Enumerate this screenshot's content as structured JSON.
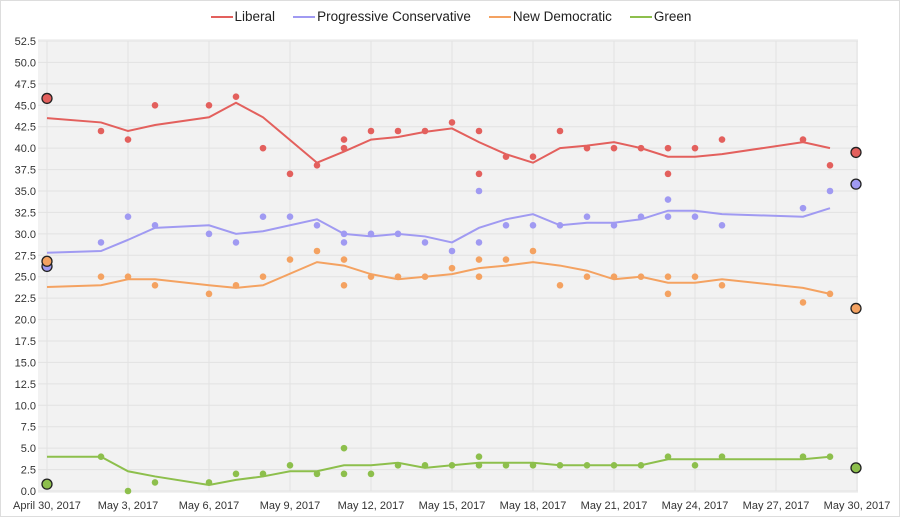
{
  "chart_data": {
    "type": "line",
    "title": "",
    "xlabel": "",
    "ylabel": "",
    "x_start": "2017-04-30",
    "x_end": "2017-05-30",
    "xticks": [
      "April 30, 2017",
      "May 3, 2017",
      "May 6, 2017",
      "May 9, 2017",
      "May 12, 2017",
      "May 15, 2017",
      "May 18, 2017",
      "May 21, 2017",
      "May 24, 2017",
      "May 27, 2017",
      "May 30, 2017"
    ],
    "ylim": [
      0,
      52.5
    ],
    "yticks": [
      "0.0",
      "2.5",
      "5.0",
      "7.5",
      "10.0",
      "12.5",
      "15.0",
      "17.5",
      "20.0",
      "22.5",
      "25.0",
      "27.5",
      "30.0",
      "32.5",
      "35.0",
      "37.5",
      "40.0",
      "42.5",
      "45.0",
      "47.5",
      "50.0",
      "52.5"
    ],
    "grid": true,
    "legend_position": "top",
    "series": [
      {
        "name": "Liberal",
        "color": "#e3605d",
        "trend": [
          [
            "04-30",
            43.5
          ],
          [
            "05-02",
            43
          ],
          [
            "05-03",
            42
          ],
          [
            "05-04",
            42.7
          ],
          [
            "05-06",
            43.6
          ],
          [
            "05-07",
            45.3
          ],
          [
            "05-08",
            43.6
          ],
          [
            "05-10",
            38.3
          ],
          [
            "05-11",
            39.6
          ],
          [
            "05-12",
            41
          ],
          [
            "05-13",
            41.3
          ],
          [
            "05-14",
            41.9
          ],
          [
            "05-15",
            42.3
          ],
          [
            "05-16",
            40.7
          ],
          [
            "05-17",
            39.3
          ],
          [
            "05-18",
            38.3
          ],
          [
            "05-19",
            40
          ],
          [
            "05-20",
            40.3
          ],
          [
            "05-21",
            40.7
          ],
          [
            "05-22",
            40
          ],
          [
            "05-23",
            39
          ],
          [
            "05-24",
            39
          ],
          [
            "05-25",
            39.3
          ],
          [
            "05-28",
            40.7
          ],
          [
            "05-29",
            40
          ]
        ],
        "polls": [
          [
            "05-02",
            42
          ],
          [
            "05-03",
            41
          ],
          [
            "05-04",
            45
          ],
          [
            "05-06",
            45
          ],
          [
            "05-07",
            46
          ],
          [
            "05-08",
            40
          ],
          [
            "05-09",
            37
          ],
          [
            "05-10",
            38
          ],
          [
            "05-11",
            41
          ],
          [
            "05-11",
            40
          ],
          [
            "05-12",
            42
          ],
          [
            "05-13",
            42
          ],
          [
            "05-14",
            42
          ],
          [
            "05-15",
            43
          ],
          [
            "05-16",
            42
          ],
          [
            "05-16",
            37
          ],
          [
            "05-17",
            39
          ],
          [
            "05-18",
            39
          ],
          [
            "05-19",
            42
          ],
          [
            "05-20",
            40
          ],
          [
            "05-21",
            40
          ],
          [
            "05-22",
            40
          ],
          [
            "05-23",
            40
          ],
          [
            "05-23",
            37
          ],
          [
            "05-24",
            40
          ],
          [
            "05-25",
            41
          ],
          [
            "05-28",
            41
          ],
          [
            "05-29",
            38
          ]
        ],
        "results": [
          [
            "04-30",
            45.8
          ],
          [
            "05-30",
            39.5
          ]
        ]
      },
      {
        "name": "Progressive Conservative",
        "color": "#a09af2",
        "trend": [
          [
            "04-30",
            27.8
          ],
          [
            "05-02",
            28
          ],
          [
            "05-03",
            29.3
          ],
          [
            "05-04",
            30.7
          ],
          [
            "05-06",
            31
          ],
          [
            "05-07",
            30
          ],
          [
            "05-08",
            30.3
          ],
          [
            "05-10",
            31.7
          ],
          [
            "05-11",
            30
          ],
          [
            "05-12",
            29.7
          ],
          [
            "05-13",
            30
          ],
          [
            "05-14",
            29.7
          ],
          [
            "05-15",
            29
          ],
          [
            "05-16",
            30.7
          ],
          [
            "05-17",
            31.7
          ],
          [
            "05-18",
            32.3
          ],
          [
            "05-19",
            31
          ],
          [
            "05-20",
            31.3
          ],
          [
            "05-21",
            31.3
          ],
          [
            "05-22",
            31.7
          ],
          [
            "05-23",
            32.7
          ],
          [
            "05-24",
            32.7
          ],
          [
            "05-25",
            32.3
          ],
          [
            "05-28",
            32
          ],
          [
            "05-29",
            33
          ]
        ],
        "polls": [
          [
            "05-02",
            29
          ],
          [
            "05-03",
            32
          ],
          [
            "05-04",
            31
          ],
          [
            "05-06",
            30
          ],
          [
            "05-07",
            29
          ],
          [
            "05-08",
            32
          ],
          [
            "05-09",
            32
          ],
          [
            "05-10",
            31
          ],
          [
            "05-11",
            30
          ],
          [
            "05-11",
            29
          ],
          [
            "05-12",
            30
          ],
          [
            "05-13",
            30
          ],
          [
            "05-14",
            29
          ],
          [
            "05-15",
            28
          ],
          [
            "05-16",
            35
          ],
          [
            "05-16",
            29
          ],
          [
            "05-17",
            31
          ],
          [
            "05-18",
            31
          ],
          [
            "05-19",
            31
          ],
          [
            "05-20",
            32
          ],
          [
            "05-21",
            31
          ],
          [
            "05-22",
            32
          ],
          [
            "05-23",
            34
          ],
          [
            "05-23",
            32
          ],
          [
            "05-24",
            32
          ],
          [
            "05-25",
            31
          ],
          [
            "05-28",
            33
          ],
          [
            "05-29",
            35
          ]
        ],
        "results": [
          [
            "04-30",
            26.2
          ],
          [
            "05-30",
            35.8
          ]
        ]
      },
      {
        "name": "New Democratic",
        "color": "#f4a261",
        "trend": [
          [
            "04-30",
            23.8
          ],
          [
            "05-02",
            24
          ],
          [
            "05-03",
            24.7
          ],
          [
            "05-04",
            24.7
          ],
          [
            "05-06",
            24
          ],
          [
            "05-07",
            23.7
          ],
          [
            "05-08",
            24
          ],
          [
            "05-10",
            26.7
          ],
          [
            "05-11",
            26.3
          ],
          [
            "05-12",
            25.3
          ],
          [
            "05-13",
            24.7
          ],
          [
            "05-14",
            25
          ],
          [
            "05-15",
            25.3
          ],
          [
            "05-16",
            26
          ],
          [
            "05-17",
            26.3
          ],
          [
            "05-18",
            26.7
          ],
          [
            "05-19",
            26.3
          ],
          [
            "05-20",
            25.7
          ],
          [
            "05-21",
            24.7
          ],
          [
            "05-22",
            25
          ],
          [
            "05-23",
            24.3
          ],
          [
            "05-24",
            24.3
          ],
          [
            "05-25",
            24.7
          ],
          [
            "05-28",
            23.7
          ],
          [
            "05-29",
            23
          ]
        ],
        "polls": [
          [
            "05-02",
            25
          ],
          [
            "05-03",
            25
          ],
          [
            "05-04",
            24
          ],
          [
            "05-06",
            23
          ],
          [
            "05-07",
            24
          ],
          [
            "05-08",
            25
          ],
          [
            "05-09",
            27
          ],
          [
            "05-10",
            28
          ],
          [
            "05-11",
            27
          ],
          [
            "05-11",
            24
          ],
          [
            "05-12",
            25
          ],
          [
            "05-13",
            25
          ],
          [
            "05-14",
            25
          ],
          [
            "05-15",
            26
          ],
          [
            "05-16",
            27
          ],
          [
            "05-16",
            25
          ],
          [
            "05-17",
            27
          ],
          [
            "05-18",
            28
          ],
          [
            "05-19",
            24
          ],
          [
            "05-20",
            25
          ],
          [
            "05-21",
            25
          ],
          [
            "05-22",
            25
          ],
          [
            "05-23",
            25
          ],
          [
            "05-23",
            23
          ],
          [
            "05-24",
            25
          ],
          [
            "05-25",
            24
          ],
          [
            "05-28",
            22
          ],
          [
            "05-29",
            23
          ]
        ],
        "results": [
          [
            "04-30",
            26.8
          ],
          [
            "05-30",
            21.3
          ]
        ]
      },
      {
        "name": "Green",
        "color": "#8dbf4c",
        "trend": [
          [
            "04-30",
            4
          ],
          [
            "05-02",
            4
          ],
          [
            "05-03",
            2.3
          ],
          [
            "05-04",
            1.7
          ],
          [
            "05-06",
            0.7
          ],
          [
            "05-07",
            1.3
          ],
          [
            "05-08",
            1.7
          ],
          [
            "05-09",
            2.3
          ],
          [
            "05-10",
            2.3
          ],
          [
            "05-11",
            3
          ],
          [
            "05-12",
            3
          ],
          [
            "05-13",
            3.3
          ],
          [
            "05-14",
            2.7
          ],
          [
            "05-15",
            3
          ],
          [
            "05-16",
            3.3
          ],
          [
            "05-17",
            3.3
          ],
          [
            "05-18",
            3.3
          ],
          [
            "05-19",
            3
          ],
          [
            "05-20",
            3
          ],
          [
            "05-21",
            3
          ],
          [
            "05-22",
            3
          ],
          [
            "05-23",
            3.7
          ],
          [
            "05-24",
            3.7
          ],
          [
            "05-25",
            3.7
          ],
          [
            "05-28",
            3.7
          ],
          [
            "05-29",
            4
          ]
        ],
        "polls": [
          [
            "05-02",
            4
          ],
          [
            "05-03",
            0
          ],
          [
            "05-04",
            1
          ],
          [
            "05-06",
            1
          ],
          [
            "05-07",
            2
          ],
          [
            "05-08",
            2
          ],
          [
            "05-09",
            3
          ],
          [
            "05-10",
            2
          ],
          [
            "05-11",
            5
          ],
          [
            "05-11",
            2
          ],
          [
            "05-12",
            2
          ],
          [
            "05-13",
            3
          ],
          [
            "05-14",
            3
          ],
          [
            "05-15",
            3
          ],
          [
            "05-16",
            4
          ],
          [
            "05-16",
            3
          ],
          [
            "05-17",
            3
          ],
          [
            "05-18",
            3
          ],
          [
            "05-19",
            3
          ],
          [
            "05-20",
            3
          ],
          [
            "05-21",
            3
          ],
          [
            "05-22",
            3
          ],
          [
            "05-23",
            4
          ],
          [
            "05-24",
            3
          ],
          [
            "05-25",
            4
          ],
          [
            "05-28",
            4
          ],
          [
            "05-29",
            4
          ]
        ],
        "results": [
          [
            "04-30",
            0.8
          ],
          [
            "05-30",
            2.7
          ]
        ]
      }
    ]
  }
}
